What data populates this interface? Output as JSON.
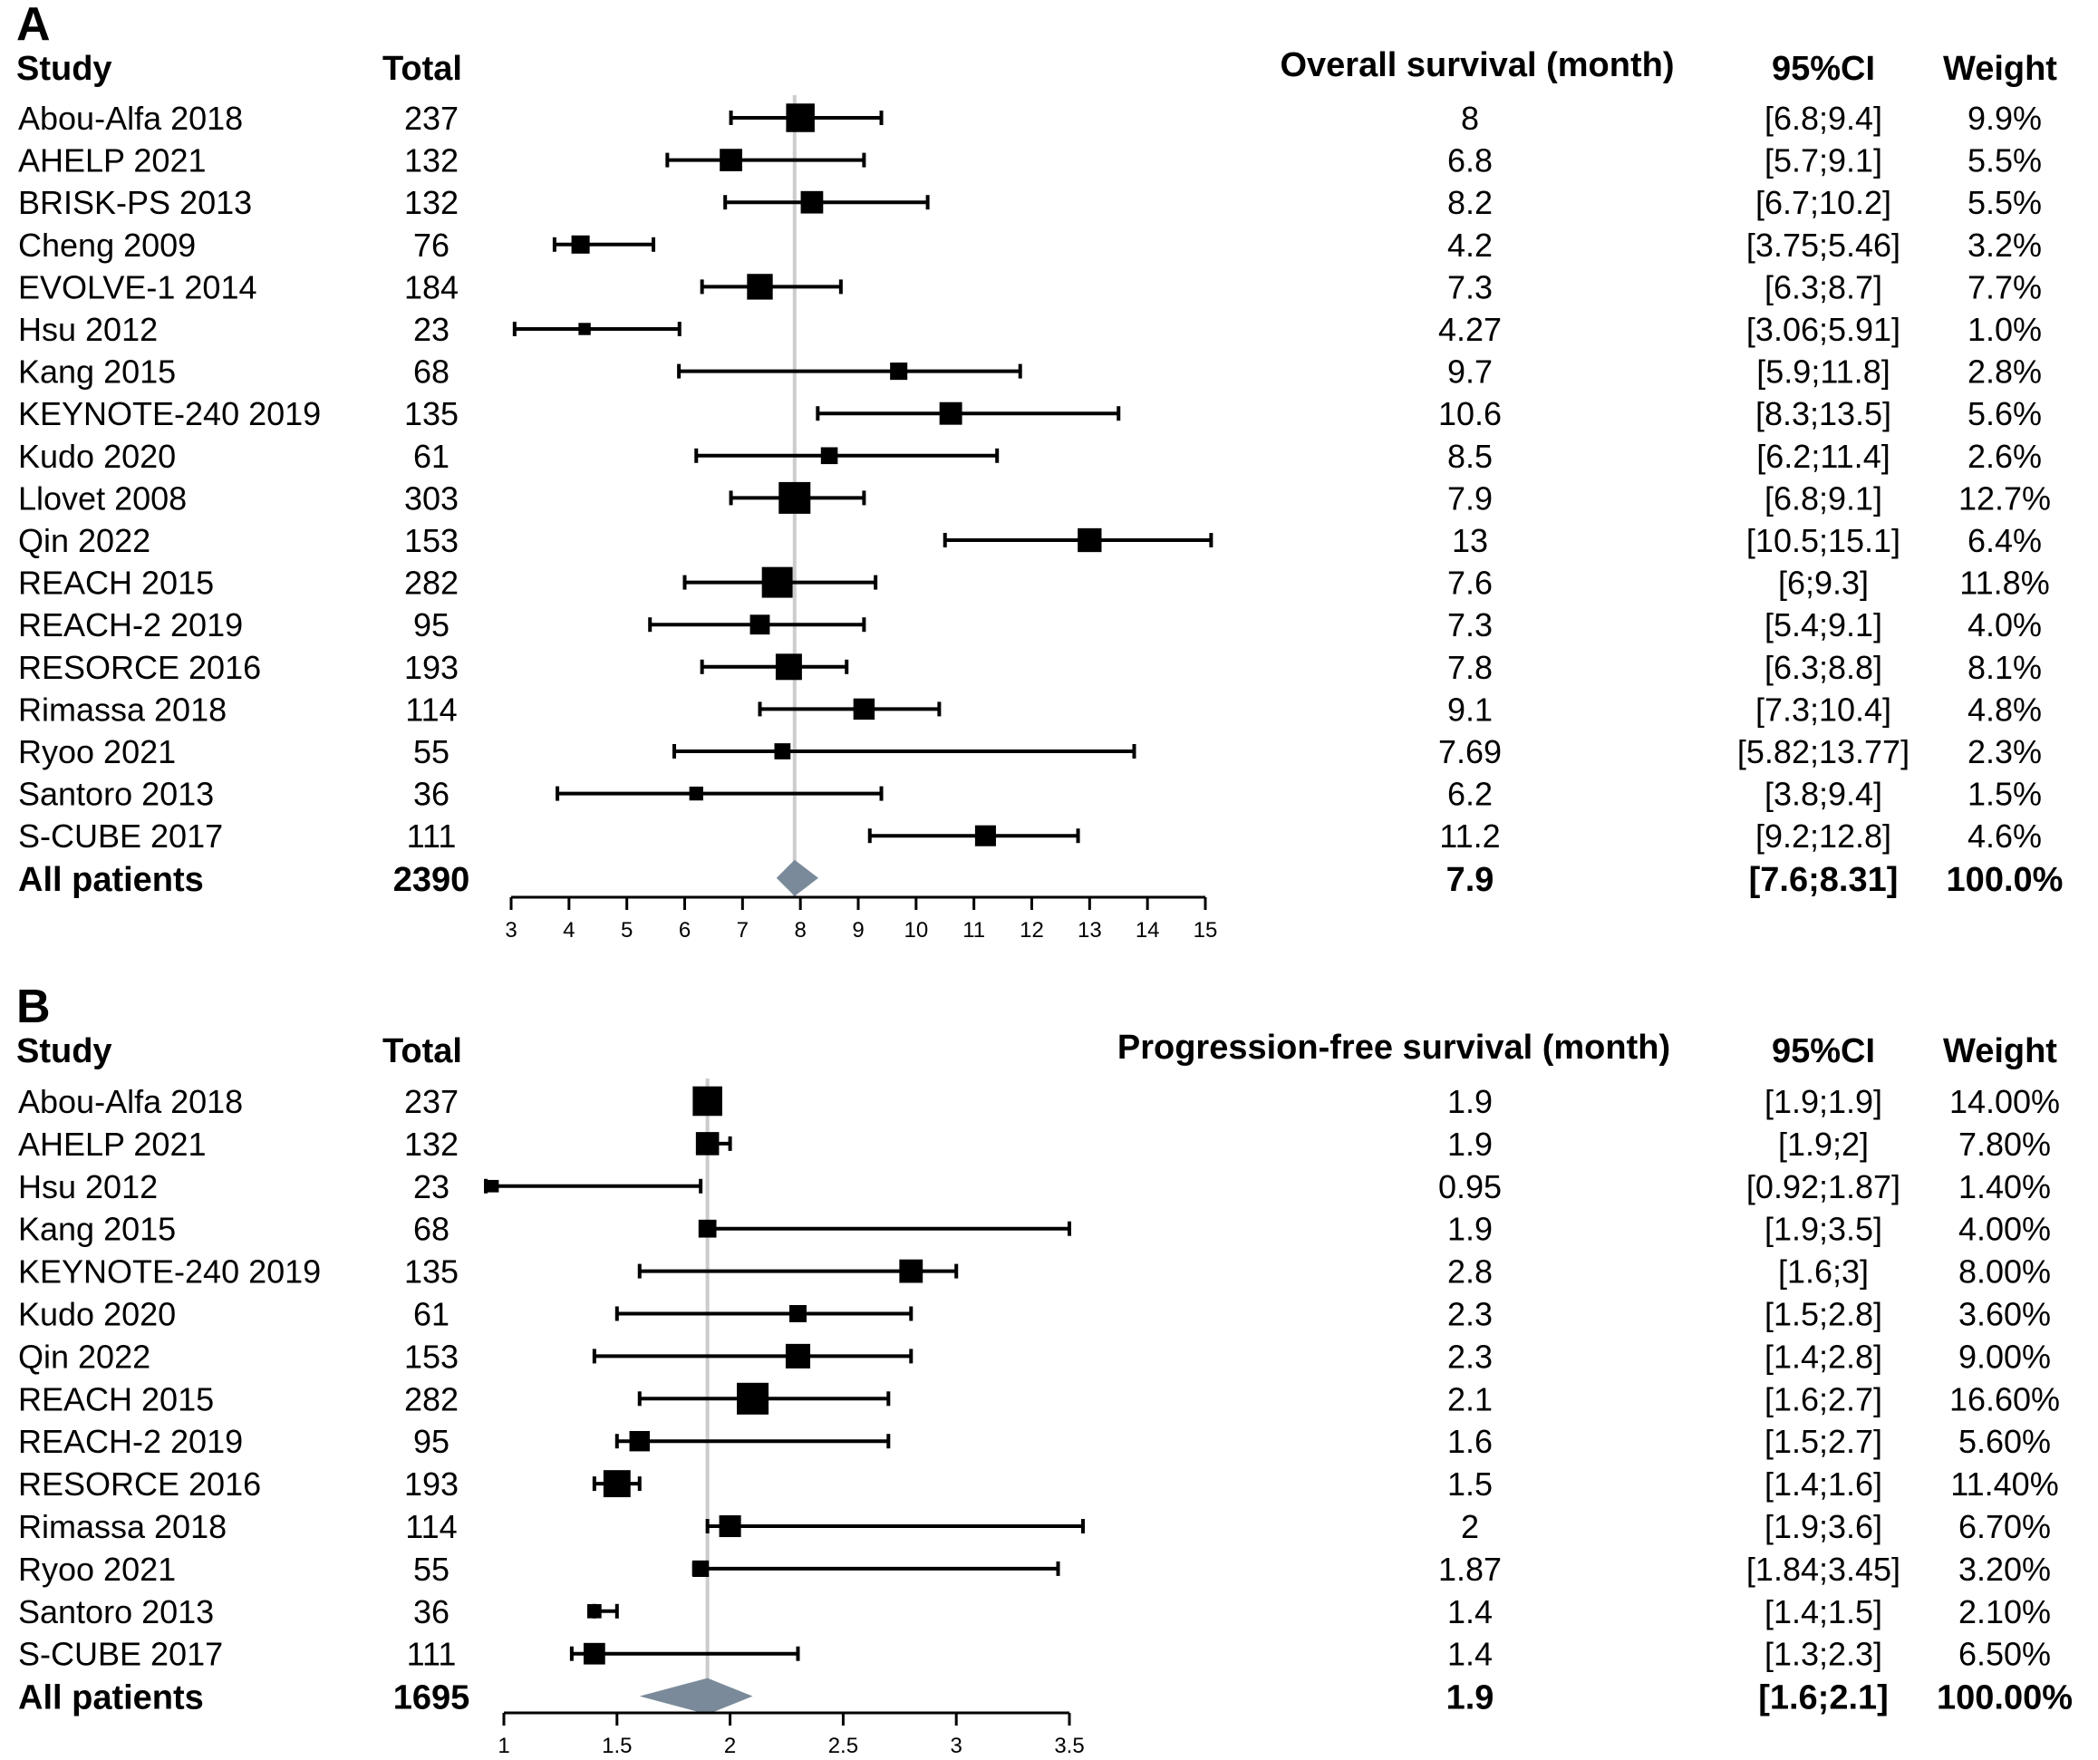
{
  "chart_data": [
    {
      "type": "forest",
      "panel_label": "A",
      "columns": {
        "study": "Study",
        "total": "Total",
        "estimate": "Overall survival (month)",
        "ci": "95%CI",
        "weight": "Weight"
      },
      "x_ticks": [
        "3",
        "4",
        "5",
        "6",
        "7",
        "8",
        "9",
        "10",
        "11",
        "12",
        "13",
        "14",
        "15"
      ],
      "xlim": [
        3,
        15
      ],
      "reference_line": 7.9,
      "studies": [
        {
          "study": "Abou-Alfa 2018",
          "total": "237",
          "estimate": 8,
          "lower": 6.8,
          "upper": 9.4,
          "estimate_label": "8",
          "ci_label": "[6.8;9.4]",
          "weight_label": "9.9%",
          "weight": 9.9
        },
        {
          "study": "AHELP 2021",
          "total": "132",
          "estimate": 6.8,
          "lower": 5.7,
          "upper": 9.1,
          "estimate_label": "6.8",
          "ci_label": "[5.7;9.1]",
          "weight_label": "5.5%",
          "weight": 5.5
        },
        {
          "study": "BRISK-PS 2013",
          "total": "132",
          "estimate": 8.2,
          "lower": 6.7,
          "upper": 10.2,
          "estimate_label": "8.2",
          "ci_label": "[6.7;10.2]",
          "weight_label": "5.5%",
          "weight": 5.5
        },
        {
          "study": "Cheng 2009",
          "total": "76",
          "estimate": 4.2,
          "lower": 3.75,
          "upper": 5.46,
          "estimate_label": "4.2",
          "ci_label": "[3.75;5.46]",
          "weight_label": "3.2%",
          "weight": 3.2
        },
        {
          "study": "EVOLVE-1 2014",
          "total": "184",
          "estimate": 7.3,
          "lower": 6.3,
          "upper": 8.7,
          "estimate_label": "7.3",
          "ci_label": "[6.3;8.7]",
          "weight_label": "7.7%",
          "weight": 7.7
        },
        {
          "study": "Hsu 2012",
          "total": "23",
          "estimate": 4.27,
          "lower": 3.06,
          "upper": 5.91,
          "estimate_label": "4.27",
          "ci_label": "[3.06;5.91]",
          "weight_label": "1.0%",
          "weight": 1.0
        },
        {
          "study": "Kang 2015",
          "total": "68",
          "estimate": 9.7,
          "lower": 5.9,
          "upper": 11.8,
          "estimate_label": "9.7",
          "ci_label": "[5.9;11.8]",
          "weight_label": "2.8%",
          "weight": 2.8
        },
        {
          "study": "KEYNOTE-240 2019",
          "total": "135",
          "estimate": 10.6,
          "lower": 8.3,
          "upper": 13.5,
          "estimate_label": "10.6",
          "ci_label": "[8.3;13.5]",
          "weight_label": "5.6%",
          "weight": 5.6
        },
        {
          "study": "Kudo 2020",
          "total": "61",
          "estimate": 8.5,
          "lower": 6.2,
          "upper": 11.4,
          "estimate_label": "8.5",
          "ci_label": "[6.2;11.4]",
          "weight_label": "2.6%",
          "weight": 2.6
        },
        {
          "study": "Llovet 2008",
          "total": "303",
          "estimate": 7.9,
          "lower": 6.8,
          "upper": 9.1,
          "estimate_label": "7.9",
          "ci_label": "[6.8;9.1]",
          "weight_label": "12.7%",
          "weight": 12.7
        },
        {
          "study": "Qin 2022",
          "total": "153",
          "estimate": 13,
          "lower": 10.5,
          "upper": 15.1,
          "estimate_label": "13",
          "ci_label": "[10.5;15.1]",
          "weight_label": "6.4%",
          "weight": 6.4
        },
        {
          "study": "REACH 2015",
          "total": "282",
          "estimate": 7.6,
          "lower": 6,
          "upper": 9.3,
          "estimate_label": "7.6",
          "ci_label": "[6;9.3]",
          "weight_label": "11.8%",
          "weight": 11.8
        },
        {
          "study": "REACH-2 2019",
          "total": "95",
          "estimate": 7.3,
          "lower": 5.4,
          "upper": 9.1,
          "estimate_label": "7.3",
          "ci_label": "[5.4;9.1]",
          "weight_label": "4.0%",
          "weight": 4.0
        },
        {
          "study": "RESORCE 2016",
          "total": "193",
          "estimate": 7.8,
          "lower": 6.3,
          "upper": 8.8,
          "estimate_label": "7.8",
          "ci_label": "[6.3;8.8]",
          "weight_label": "8.1%",
          "weight": 8.1
        },
        {
          "study": "Rimassa 2018",
          "total": "114",
          "estimate": 9.1,
          "lower": 7.3,
          "upper": 10.4,
          "estimate_label": "9.1",
          "ci_label": "[7.3;10.4]",
          "weight_label": "4.8%",
          "weight": 4.8
        },
        {
          "study": "Ryoo 2021",
          "total": "55",
          "estimate": 7.69,
          "lower": 5.82,
          "upper": 13.77,
          "estimate_label": "7.69",
          "ci_label": "[5.82;13.77]",
          "weight_label": "2.3%",
          "weight": 2.3
        },
        {
          "study": "Santoro 2013",
          "total": "36",
          "estimate": 6.2,
          "lower": 3.8,
          "upper": 9.4,
          "estimate_label": "6.2",
          "ci_label": "[3.8;9.4]",
          "weight_label": "1.5%",
          "weight": 1.5
        },
        {
          "study": "S-CUBE 2017",
          "total": "111",
          "estimate": 11.2,
          "lower": 9.2,
          "upper": 12.8,
          "estimate_label": "11.2",
          "ci_label": "[9.2;12.8]",
          "weight_label": "4.6%",
          "weight": 4.6
        }
      ],
      "pooled": {
        "study": "All patients",
        "total": "2390",
        "estimate": 7.9,
        "lower": 7.6,
        "upper": 8.31,
        "estimate_label": "7.9",
        "ci_label": "[7.6;8.31]",
        "weight_label": "100.0%"
      }
    },
    {
      "type": "forest",
      "panel_label": "B",
      "columns": {
        "study": "Study",
        "total": "Total",
        "estimate": "Progression-free survival (month)",
        "ci": "95%CI",
        "weight": "Weight"
      },
      "x_ticks": [
        "1",
        "1.5",
        "2",
        "2.5",
        "3",
        "3.5"
      ],
      "xlim": [
        1,
        3.5
      ],
      "reference_line": 1.9,
      "studies": [
        {
          "study": "Abou-Alfa 2018",
          "total": "237",
          "estimate": 1.9,
          "lower": 1.9,
          "upper": 1.9,
          "estimate_label": "1.9",
          "ci_label": "[1.9;1.9]",
          "weight_label": "14.00%",
          "weight": 14.0
        },
        {
          "study": "AHELP 2021",
          "total": "132",
          "estimate": 1.9,
          "lower": 1.9,
          "upper": 2,
          "estimate_label": "1.9",
          "ci_label": "[1.9;2]",
          "weight_label": "7.80%",
          "weight": 7.8
        },
        {
          "study": "Hsu 2012",
          "total": "23",
          "estimate": 0.95,
          "lower": 0.92,
          "upper": 1.87,
          "estimate_label": "0.95",
          "ci_label": "[0.92;1.87]",
          "weight_label": "1.40%",
          "weight": 1.4
        },
        {
          "study": "Kang 2015",
          "total": "68",
          "estimate": 1.9,
          "lower": 1.9,
          "upper": 3.5,
          "estimate_label": "1.9",
          "ci_label": "[1.9;3.5]",
          "weight_label": "4.00%",
          "weight": 4.0
        },
        {
          "study": "KEYNOTE-240 2019",
          "total": "135",
          "estimate": 2.8,
          "lower": 1.6,
          "upper": 3,
          "estimate_label": "2.8",
          "ci_label": "[1.6;3]",
          "weight_label": "8.00%",
          "weight": 8.0
        },
        {
          "study": "Kudo 2020",
          "total": "61",
          "estimate": 2.3,
          "lower": 1.5,
          "upper": 2.8,
          "estimate_label": "2.3",
          "ci_label": "[1.5;2.8]",
          "weight_label": "3.60%",
          "weight": 3.6
        },
        {
          "study": "Qin 2022",
          "total": "153",
          "estimate": 2.3,
          "lower": 1.4,
          "upper": 2.8,
          "estimate_label": "2.3",
          "ci_label": "[1.4;2.8]",
          "weight_label": "9.00%",
          "weight": 9.0
        },
        {
          "study": "REACH 2015",
          "total": "282",
          "estimate": 2.1,
          "lower": 1.6,
          "upper": 2.7,
          "estimate_label": "2.1",
          "ci_label": "[1.6;2.7]",
          "weight_label": "16.60%",
          "weight": 16.6
        },
        {
          "study": "REACH-2 2019",
          "total": "95",
          "estimate": 1.6,
          "lower": 1.5,
          "upper": 2.7,
          "estimate_label": "1.6",
          "ci_label": "[1.5;2.7]",
          "weight_label": "5.60%",
          "weight": 5.6
        },
        {
          "study": "RESORCE 2016",
          "total": "193",
          "estimate": 1.5,
          "lower": 1.4,
          "upper": 1.6,
          "estimate_label": "1.5",
          "ci_label": "[1.4;1.6]",
          "weight_label": "11.40%",
          "weight": 11.4
        },
        {
          "study": "Rimassa 2018",
          "total": "114",
          "estimate": 2,
          "lower": 1.9,
          "upper": 3.6,
          "estimate_label": "2",
          "ci_label": "[1.9;3.6]",
          "weight_label": "6.70%",
          "weight": 6.7
        },
        {
          "study": "Ryoo 2021",
          "total": "55",
          "estimate": 1.87,
          "lower": 1.84,
          "upper": 3.45,
          "estimate_label": "1.87",
          "ci_label": "[1.84;3.45]",
          "weight_label": "3.20%",
          "weight": 3.2
        },
        {
          "study": "Santoro 2013",
          "total": "36",
          "estimate": 1.4,
          "lower": 1.4,
          "upper": 1.5,
          "estimate_label": "1.4",
          "ci_label": "[1.4;1.5]",
          "weight_label": "2.10%",
          "weight": 2.1
        },
        {
          "study": "S-CUBE 2017",
          "total": "111",
          "estimate": 1.4,
          "lower": 1.3,
          "upper": 2.3,
          "estimate_label": "1.4",
          "ci_label": "[1.3;2.3]",
          "weight_label": "6.50%",
          "weight": 6.5
        }
      ],
      "pooled": {
        "study": "All patients",
        "total": "1695",
        "estimate": 1.9,
        "lower": 1.6,
        "upper": 2.1,
        "estimate_label": "1.9",
        "ci_label": "[1.6;2.1]",
        "weight_label": "100.00%"
      }
    }
  ],
  "colors": {
    "marker": "#000000",
    "diamond": "#7a8a9a",
    "reference_line": "#cccccc",
    "text": "#000000"
  }
}
